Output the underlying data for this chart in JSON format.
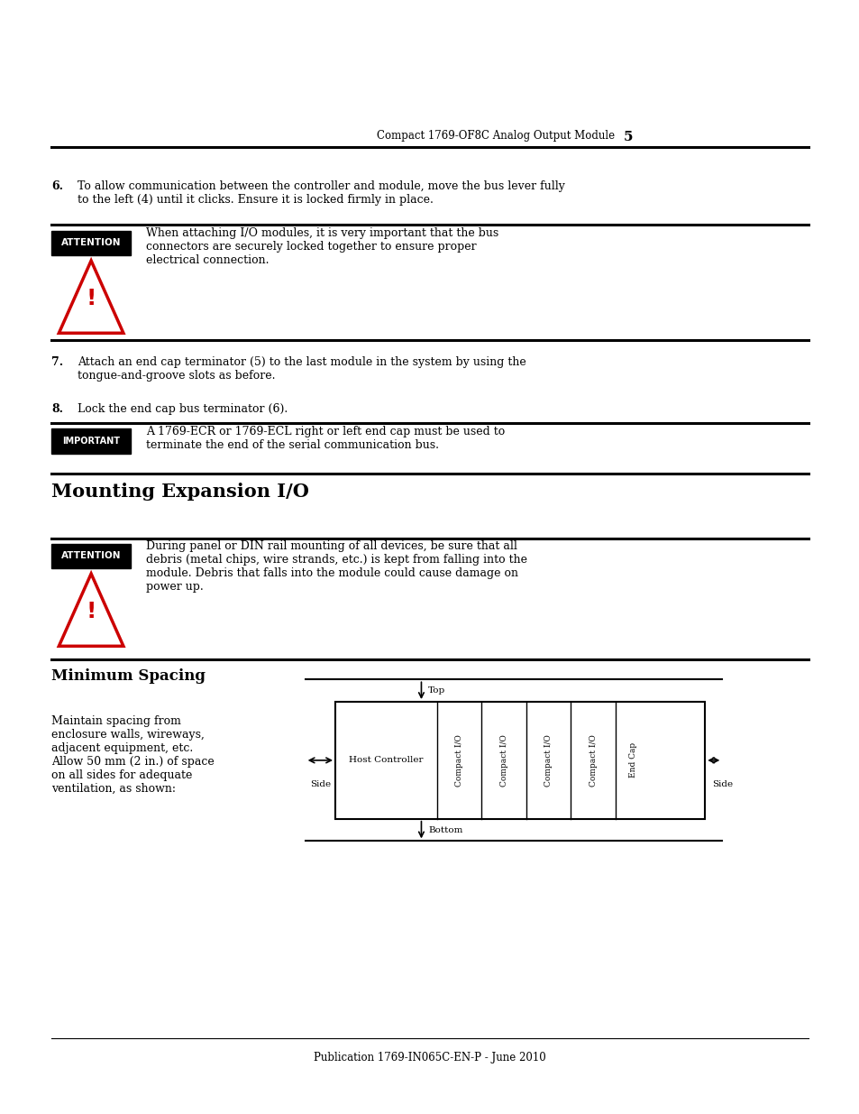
{
  "page_header": "Compact 1769-OF8C Analog Output Module",
  "page_number": "5",
  "page_footer": "Publication 1769-IN065C-EN-P - June 2010",
  "bg_color": "#ffffff",
  "attention_label": "ATTENTION",
  "important_label": "IMPORTANT",
  "section_heading_1": "Mounting Expansion I/O",
  "section_heading_2": "Minimum Spacing",
  "step6_text": "To allow communication between the controller and module, move the bus lever fully\nto the left (4) until it clicks. Ensure it is locked firmly in place.",
  "attention1_text": "When attaching I/O modules, it is very important that the bus\nconnectors are securely locked together to ensure proper\nelectrical connection.",
  "step7_text": "Attach an end cap terminator (5) to the last module in the system by using the\ntongue-and-groove slots as before.",
  "step8_text": "Lock the end cap bus terminator (6).",
  "important_text": "A 1769-ECR or 1769-ECL right or left end cap must be used to\nterminate the end of the serial communication bus.",
  "attention2_text": "During panel or DIN rail mounting of all devices, be sure that all\ndebris (metal chips, wire strands, etc.) is kept from falling into the\nmodule. Debris that falls into the module could cause damage on\npower up.",
  "spacing_text": "Maintain spacing from\nenclosure walls, wireways,\nadjacent equipment, etc.\nAllow 50 mm (2 in.) of space\non all sides for adequate\nventilation, as shown:",
  "diagram_top_label": "Top",
  "diagram_bottom_label": "Bottom",
  "diagram_side_label": "Side",
  "host_controller_label": "Host Controller",
  "compact_io_labels": [
    "Compact I/O",
    "Compact I/O",
    "Compact I/O",
    "Compact I/O"
  ],
  "end_cap_label": "End Cap"
}
